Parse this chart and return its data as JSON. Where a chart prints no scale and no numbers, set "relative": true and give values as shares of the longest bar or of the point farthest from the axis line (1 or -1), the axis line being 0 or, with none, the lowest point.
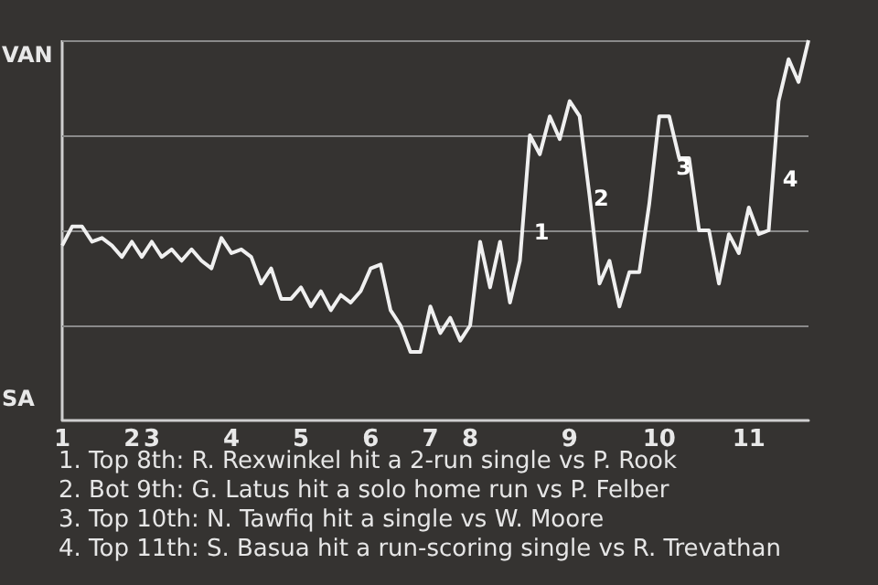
{
  "chart_data": {
    "type": "line",
    "categories": [
      "1",
      null,
      null,
      null,
      null,
      null,
      null,
      "2",
      null,
      "3",
      null,
      null,
      null,
      null,
      null,
      null,
      null,
      "4",
      null,
      null,
      null,
      null,
      null,
      null,
      "5",
      null,
      null,
      null,
      null,
      null,
      null,
      "6",
      null,
      null,
      null,
      null,
      null,
      "7",
      null,
      null,
      null,
      "8",
      null,
      null,
      null,
      null,
      null,
      null,
      null,
      null,
      null,
      "9",
      null,
      null,
      null,
      null,
      null,
      null,
      null,
      null,
      "10",
      null,
      null,
      null,
      null,
      null,
      null,
      null,
      null,
      "11",
      null,
      null,
      null,
      null,
      null,
      null
    ],
    "relative": true,
    "series": [
      {
        "color": "#f0f0f0",
        "values": [
          0.46,
          0.51,
          0.51,
          0.47,
          0.48,
          0.46,
          0.43,
          0.47,
          0.43,
          0.47,
          0.43,
          0.45,
          0.42,
          0.45,
          0.42,
          0.4,
          0.48,
          0.44,
          0.45,
          0.43,
          0.36,
          0.4,
          0.32,
          0.32,
          0.35,
          0.3,
          0.34,
          0.29,
          0.33,
          0.31,
          0.34,
          0.4,
          0.41,
          0.29,
          0.25,
          0.18,
          0.18,
          0.3,
          0.23,
          0.27,
          0.21,
          0.25,
          0.47,
          0.35,
          0.47,
          0.31,
          0.42,
          0.75,
          0.7,
          0.8,
          0.74,
          0.84,
          0.8,
          0.59,
          0.36,
          0.42,
          0.3,
          0.39,
          0.39,
          0.57,
          0.8,
          0.8,
          0.69,
          0.69,
          0.5,
          0.5,
          0.36,
          0.49,
          0.44,
          0.56,
          0.49,
          0.5,
          0.84,
          0.95,
          0.89,
          1.0
        ]
      }
    ],
    "marker": "none",
    "line_style": "solid",
    "ref_lines": [
      {
        "axis": "y",
        "value": 0.25,
        "color": "#8a8a8a"
      },
      {
        "axis": "y",
        "value": 0.5,
        "color": "#8a8a8a"
      },
      {
        "axis": "y",
        "value": 0.75,
        "color": "#8a8a8a"
      },
      {
        "axis": "y",
        "value": 1,
        "color": "#8a8a8a"
      }
    ],
    "annotations": [
      "VAN",
      "SA",
      "1",
      "2",
      "3",
      "4",
      "1. Top 8th: R. Rexwinkel hit a 2-run single vs P. Rook",
      "2. Bot 9th: G. Latus hit a solo home run vs P. Felber",
      "3. Top 10th: N. Tawfiq hit a single vs W. Moore",
      "4. Top 11th: S. Basua hit a run-scoring single vs R. Trevathan"
    ]
  }
}
